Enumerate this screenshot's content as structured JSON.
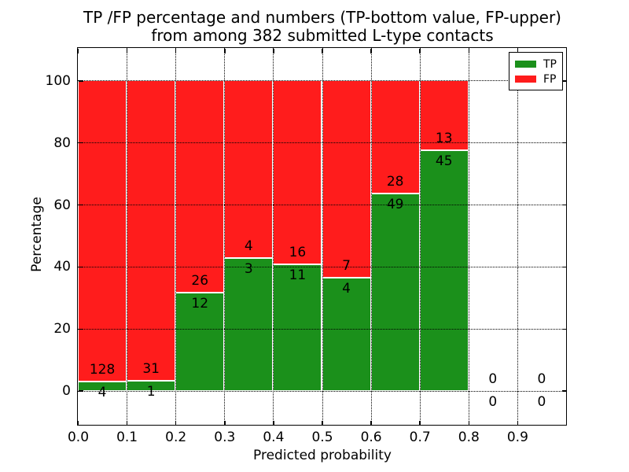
{
  "figure": {
    "title_line1": "TP /FP percentage and numbers (TP-bottom value, FP-upper)",
    "title_line2": "from among 382 submitted L-type contacts"
  },
  "chart_data": {
    "type": "bar",
    "variant": "stacked-percentage",
    "title": "TP /FP percentage and numbers (TP-bottom value, FP-upper)\nfrom among 382 submitted L-type contacts",
    "xlabel": "Predicted probability",
    "ylabel": "Percentage",
    "total_submitted_contacts": 382,
    "bin_width": 0.1,
    "bin_starts": [
      0.0,
      0.1,
      0.2,
      0.3,
      0.4,
      0.5,
      0.6,
      0.7,
      0.8,
      0.9
    ],
    "series": [
      {
        "name": "TP",
        "color": "#1b901b",
        "counts": [
          4,
          1,
          12,
          3,
          11,
          4,
          49,
          45,
          0,
          0
        ]
      },
      {
        "name": "FP",
        "color": "#ff1c1c",
        "counts": [
          128,
          31,
          26,
          4,
          16,
          7,
          28,
          13,
          0,
          0
        ]
      }
    ],
    "tp_percent_by_bin": [
      3.0,
      3.1,
      31.6,
      42.9,
      40.7,
      36.4,
      63.6,
      77.6,
      null,
      null
    ],
    "xticks": [
      "0.0",
      "0.1",
      "0.2",
      "0.3",
      "0.4",
      "0.5",
      "0.6",
      "0.7",
      "0.8",
      "0.9"
    ],
    "yticks": [
      "0",
      "20",
      "40",
      "60",
      "80",
      "100"
    ],
    "ytick_values": [
      0,
      20,
      40,
      60,
      80,
      100
    ],
    "xtick_values": [
      0.0,
      0.1,
      0.2,
      0.3,
      0.4,
      0.5,
      0.6,
      0.7,
      0.8,
      0.9
    ],
    "xlim": [
      0.0,
      1.0
    ],
    "ylim": [
      -11,
      110.5
    ],
    "grid": "dotted, drawn above bars",
    "bar_edge_color": "#ffffff",
    "legend": {
      "position": "upper right",
      "entries": [
        {
          "label": "TP",
          "color": "#1b901b"
        },
        {
          "label": "FP",
          "color": "#ff1c1c"
        }
      ]
    }
  }
}
